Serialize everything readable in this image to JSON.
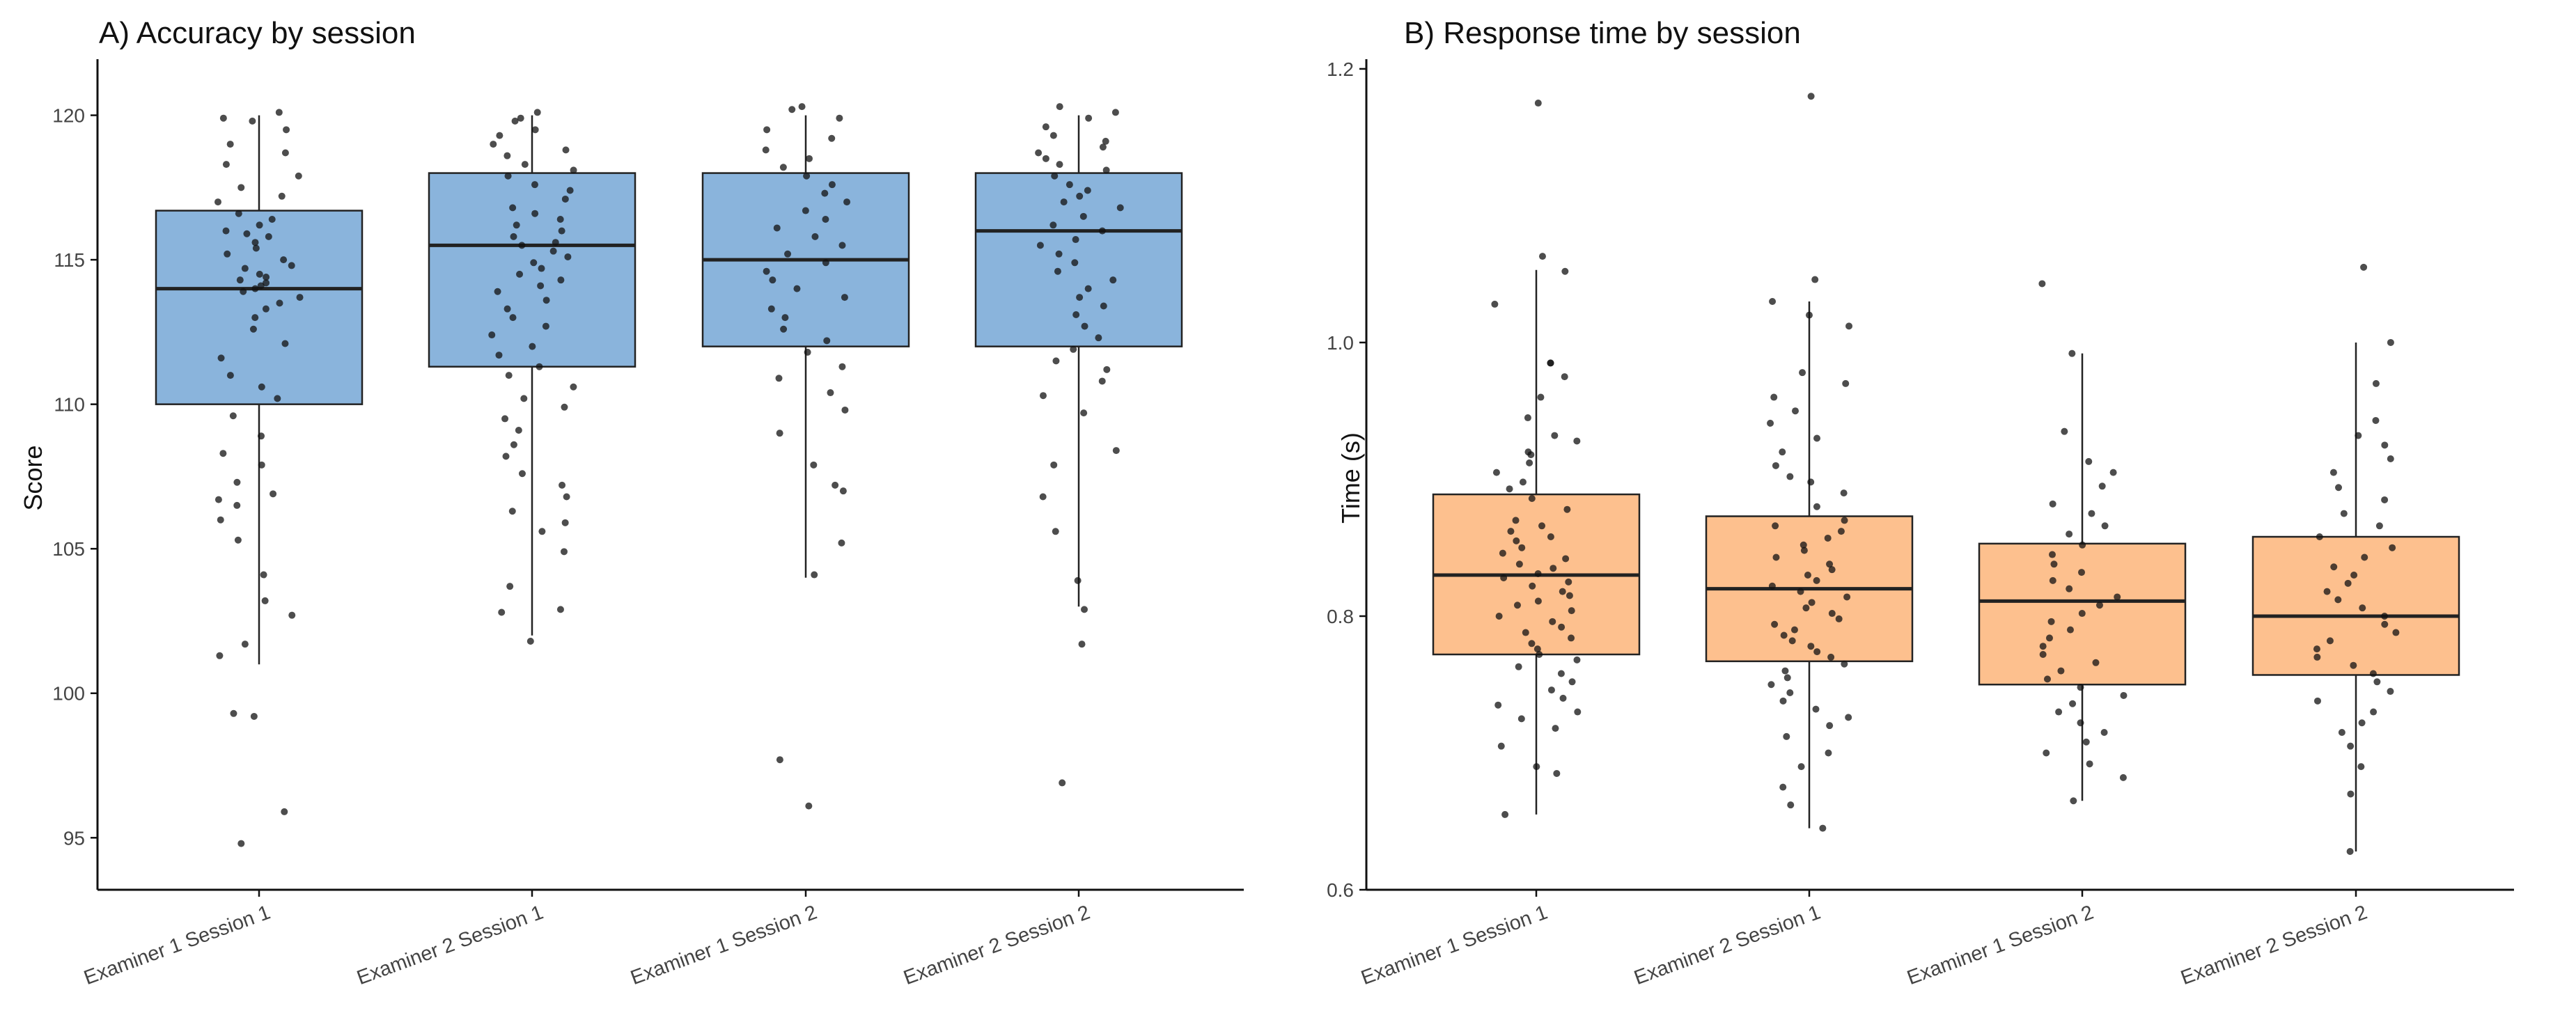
{
  "chart_data": [
    {
      "type": "box",
      "title": "A) Accuracy by session",
      "xlabel": "",
      "ylabel": "Score",
      "ylim": [
        93.2,
        121.7
      ],
      "yticks": [
        95,
        100,
        105,
        110,
        115,
        120
      ],
      "grid": false,
      "legend": "none",
      "box_color": "#8ab4dc",
      "categories": [
        "Examiner 1 Session 1",
        "Examiner 2 Session 1",
        "Examiner 1 Session 2",
        "Examiner 2 Session 2"
      ],
      "boxes": [
        {
          "whisker_low": 101,
          "q1": 110,
          "median": 114,
          "q3": 116.7,
          "whisker_high": 120
        },
        {
          "whisker_low": 102,
          "q1": 111.3,
          "median": 115.5,
          "q3": 118,
          "whisker_high": 120
        },
        {
          "whisker_low": 104,
          "q1": 112,
          "median": 115,
          "q3": 118,
          "whisker_high": 120
        },
        {
          "whisker_low": 103,
          "q1": 112,
          "median": 116,
          "q3": 118,
          "whisker_high": 120
        }
      ],
      "points": [
        [
          120.1,
          119.9,
          119.8,
          119.5,
          119.0,
          118.7,
          118.3,
          117.9,
          117.5,
          117.2,
          117.0,
          116.6,
          116.4,
          116.2,
          116.0,
          115.9,
          115.8,
          115.6,
          115.4,
          115.2,
          115.0,
          114.8,
          114.7,
          114.5,
          114.4,
          114.3,
          114.2,
          114.1,
          114.0,
          113.9,
          113.7,
          113.5,
          113.3,
          113.0,
          112.6,
          112.1,
          111.6,
          111.0,
          110.6,
          110.2,
          109.6,
          108.9,
          108.3,
          107.9,
          107.3,
          106.9,
          106.7,
          106.5,
          106.0,
          105.3,
          104.1,
          103.2,
          102.7,
          101.7,
          101.3,
          99.3,
          99.2,
          95.9,
          94.8
        ],
        [
          120.1,
          119.9,
          119.8,
          119.5,
          119.3,
          119.0,
          118.8,
          118.6,
          118.3,
          118.1,
          117.9,
          117.6,
          117.4,
          117.1,
          116.8,
          116.6,
          116.4,
          116.2,
          116.0,
          115.8,
          115.6,
          115.5,
          115.3,
          115.1,
          114.9,
          114.7,
          114.5,
          114.3,
          114.1,
          113.9,
          113.6,
          113.3,
          113.0,
          112.7,
          112.4,
          112.0,
          111.7,
          111.3,
          111.0,
          110.6,
          110.2,
          109.9,
          109.5,
          109.1,
          108.6,
          108.2,
          107.6,
          107.2,
          106.8,
          106.3,
          105.9,
          105.6,
          104.9,
          103.7,
          102.9,
          102.8,
          101.8
        ],
        [
          120.3,
          120.2,
          119.9,
          119.5,
          119.2,
          118.8,
          118.5,
          118.2,
          117.9,
          117.6,
          117.3,
          117.0,
          116.7,
          116.4,
          116.1,
          115.8,
          115.5,
          115.2,
          114.9,
          114.6,
          114.3,
          114.0,
          113.7,
          113.3,
          113.0,
          112.6,
          112.2,
          111.8,
          111.3,
          110.9,
          110.4,
          109.8,
          109.0,
          107.9,
          107.2,
          107.0,
          105.2,
          104.1,
          97.7,
          96.1
        ],
        [
          120.3,
          120.1,
          119.9,
          119.6,
          119.3,
          119.1,
          118.9,
          118.7,
          118.5,
          118.3,
          118.1,
          117.9,
          117.6,
          117.4,
          117.2,
          117.0,
          116.8,
          116.5,
          116.2,
          116.0,
          115.7,
          115.5,
          115.2,
          114.9,
          114.6,
          114.3,
          114.0,
          113.7,
          113.4,
          113.1,
          112.7,
          112.3,
          111.9,
          111.5,
          111.2,
          110.8,
          110.3,
          109.7,
          108.4,
          107.9,
          106.8,
          105.6,
          103.9,
          102.9,
          101.7,
          96.9
        ]
      ]
    },
    {
      "type": "box",
      "title": "B) Response time by session",
      "xlabel": "",
      "ylabel": "Time (s)",
      "ylim": [
        0.6,
        1.202
      ],
      "yticks": [
        0.6,
        0.8,
        1.0,
        1.2
      ],
      "ytick_labels": [
        "0.6",
        "0.8",
        "1.0",
        "1.2"
      ],
      "grid": false,
      "legend": "none",
      "box_color": "#fdc08e",
      "categories": [
        "Examiner 1 Session 1",
        "Examiner 2 Session 1",
        "Examiner 1 Session 2",
        "Examiner 2 Session 2"
      ],
      "boxes": [
        {
          "whisker_low": 0.655,
          "q1": 0.772,
          "median": 0.83,
          "q3": 0.889,
          "whisker_high": 1.053
        },
        {
          "whisker_low": 0.645,
          "q1": 0.767,
          "median": 0.82,
          "q3": 0.873,
          "whisker_high": 1.03
        },
        {
          "whisker_low": 0.665,
          "q1": 0.75,
          "median": 0.811,
          "q3": 0.853,
          "whisker_high": 0.992
        },
        {
          "whisker_low": 0.628,
          "q1": 0.757,
          "median": 0.8,
          "q3": 0.858,
          "whisker_high": 1.0
        }
      ],
      "points": [
        [
          1.175,
          1.063,
          1.052,
          1.028,
          0.985,
          0.985,
          0.975,
          0.96,
          0.945,
          0.932,
          0.928,
          0.92,
          0.918,
          0.912,
          0.905,
          0.898,
          0.893,
          0.886,
          0.878,
          0.87,
          0.866,
          0.862,
          0.858,
          0.855,
          0.85,
          0.846,
          0.842,
          0.838,
          0.835,
          0.831,
          0.828,
          0.825,
          0.822,
          0.818,
          0.815,
          0.811,
          0.808,
          0.804,
          0.8,
          0.796,
          0.792,
          0.788,
          0.784,
          0.78,
          0.776,
          0.772,
          0.768,
          0.763,
          0.758,
          0.752,
          0.746,
          0.74,
          0.735,
          0.73,
          0.725,
          0.718,
          0.705,
          0.69,
          0.685,
          0.655
        ],
        [
          1.18,
          1.046,
          1.03,
          1.02,
          1.012,
          0.978,
          0.97,
          0.96,
          0.95,
          0.941,
          0.93,
          0.92,
          0.91,
          0.902,
          0.898,
          0.89,
          0.88,
          0.87,
          0.866,
          0.862,
          0.857,
          0.852,
          0.848,
          0.843,
          0.838,
          0.834,
          0.83,
          0.826,
          0.822,
          0.818,
          0.814,
          0.81,
          0.806,
          0.802,
          0.798,
          0.794,
          0.79,
          0.786,
          0.782,
          0.778,
          0.774,
          0.77,
          0.765,
          0.76,
          0.755,
          0.75,
          0.744,
          0.738,
          0.732,
          0.726,
          0.72,
          0.712,
          0.7,
          0.69,
          0.675,
          0.662,
          0.645
        ],
        [
          1.043,
          0.992,
          0.935,
          0.913,
          0.905,
          0.895,
          0.882,
          0.875,
          0.866,
          0.86,
          0.852,
          0.845,
          0.838,
          0.832,
          0.826,
          0.82,
          0.814,
          0.808,
          0.802,
          0.796,
          0.79,
          0.784,
          0.778,
          0.772,
          0.766,
          0.76,
          0.754,
          0.748,
          0.742,
          0.736,
          0.73,
          0.722,
          0.715,
          0.708,
          0.7,
          0.692,
          0.682,
          0.665
        ],
        [
          1.055,
          1.0,
          0.97,
          0.943,
          0.932,
          0.925,
          0.915,
          0.905,
          0.894,
          0.885,
          0.875,
          0.866,
          0.858,
          0.85,
          0.843,
          0.836,
          0.83,
          0.824,
          0.818,
          0.812,
          0.806,
          0.8,
          0.794,
          0.788,
          0.782,
          0.776,
          0.77,
          0.764,
          0.758,
          0.752,
          0.745,
          0.738,
          0.73,
          0.722,
          0.715,
          0.705,
          0.69,
          0.67,
          0.628
        ]
      ]
    }
  ]
}
